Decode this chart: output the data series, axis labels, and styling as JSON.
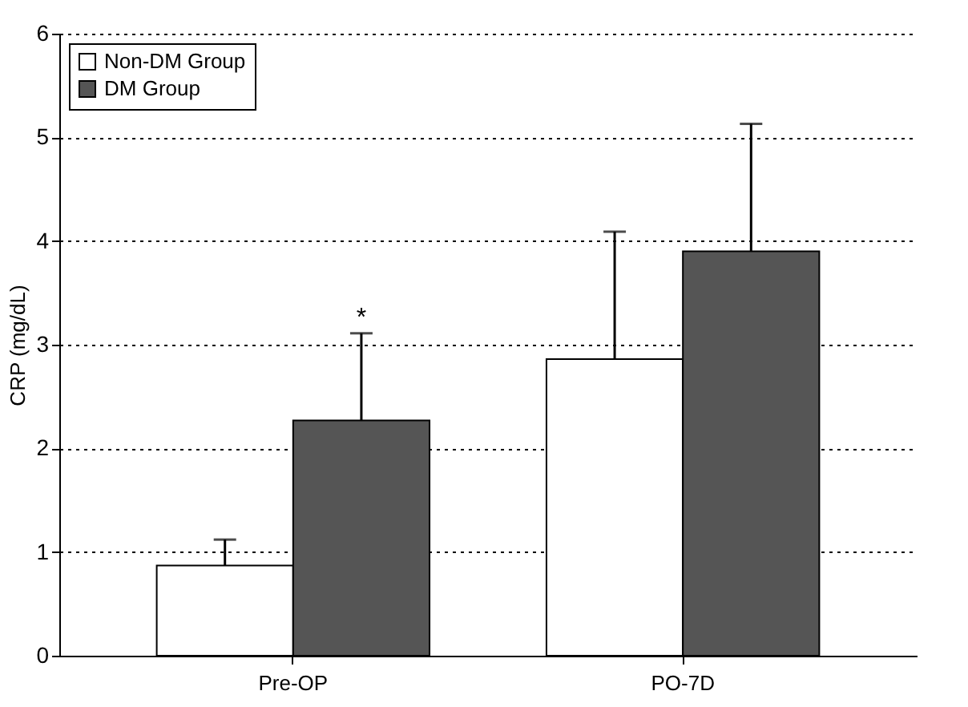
{
  "chart_data": {
    "type": "bar",
    "ylabel": "CRP (mg/dL)",
    "categories": [
      "Pre-OP",
      "PO-7D"
    ],
    "series": [
      {
        "name": "Non-DM Group",
        "color": "#ffffff",
        "values": [
          0.87,
          2.86
        ],
        "errors": [
          [
            0.87,
            1.12
          ],
          [
            2.86,
            4.09
          ]
        ]
      },
      {
        "name": "DM Group",
        "color": "#555555",
        "values": [
          2.27,
          3.9
        ],
        "errors": [
          [
            2.27,
            3.11
          ],
          [
            3.9,
            5.13
          ]
        ]
      }
    ],
    "ylim": [
      0,
      6
    ],
    "yticks": [
      0,
      1,
      2,
      3,
      4,
      5,
      6
    ],
    "grid": "y",
    "legend": "top left",
    "annotations": [
      "*"
    ]
  }
}
